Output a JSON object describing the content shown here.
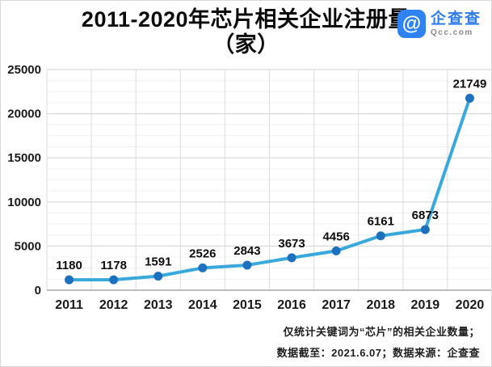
{
  "page": {
    "title_line1": "2011-2020年芯片相关企业注册量",
    "title_line2": "（家）"
  },
  "logo": {
    "icon_glyph": "@",
    "name": "企查查",
    "domain": "Qcc.com",
    "brand_color": "#2e82f2"
  },
  "footer": {
    "line1": "仅统计关键词为“芯片”的相关企业数量；",
    "line2": "数据截至：2021.6.07；数据来源：企查查"
  },
  "chart_data": {
    "type": "line",
    "title": "2011-2020年芯片相关企业注册量（家）",
    "categories": [
      "2011",
      "2012",
      "2013",
      "2014",
      "2015",
      "2016",
      "2017",
      "2018",
      "2019",
      "2020"
    ],
    "values": [
      1180,
      1178,
      1591,
      2526,
      2843,
      3673,
      4456,
      6161,
      6873,
      21749
    ],
    "xlabel": "",
    "ylabel": "",
    "ylim": [
      0,
      25000
    ],
    "y_major_step": 5000,
    "y_minor_step": 1250,
    "y_tick_labels": [
      "0",
      "5000",
      "10000",
      "15000",
      "20000",
      "25000"
    ],
    "grid": true,
    "legend": "none",
    "line_color": "#38a8dd",
    "marker_color": "#1d70be",
    "data_label_color": "#0d0d0d",
    "axis_label_color": "#1a1a1a",
    "grid_major_color": "#d9d9d9",
    "grid_minor_color": "#f0f0f0",
    "grid_vertical_color": "#dcdcdc",
    "axis_line_color": "#a9a9a9"
  }
}
